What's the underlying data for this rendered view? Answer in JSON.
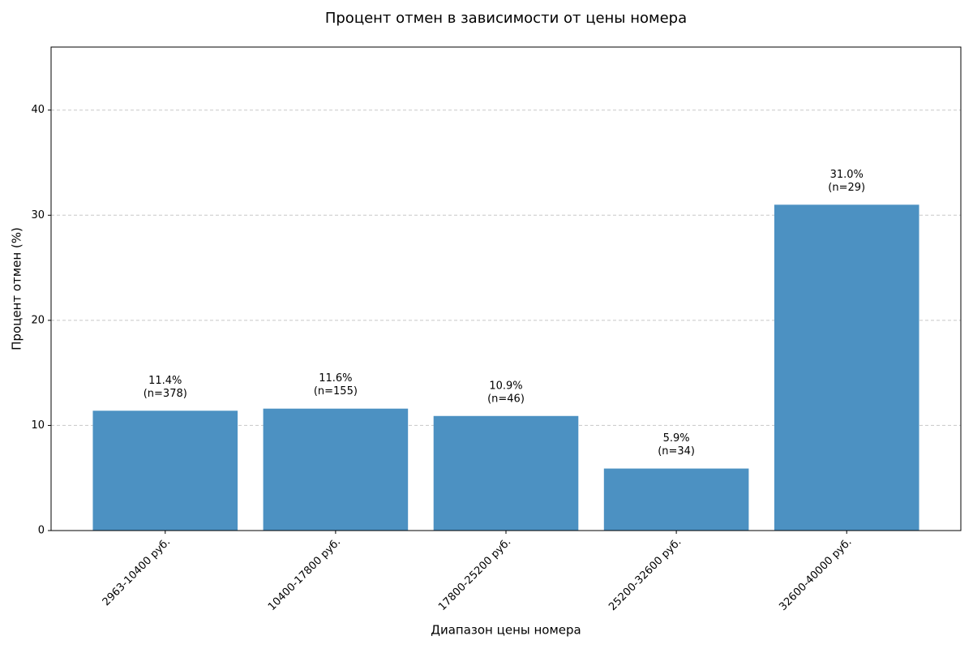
{
  "chart_data": {
    "type": "bar",
    "title": "Процент отмен в зависимости от цены номера",
    "x_label": "Диапазон цены номера",
    "y_label": "Процент отмен (%)",
    "categories": [
      "2963-10400 руб.",
      "10400-17800 руб.",
      "17800-25200 руб.",
      "25200-32600 руб.",
      "32600-40000 руб."
    ],
    "values": [
      11.4,
      11.6,
      10.9,
      5.9,
      31.0
    ],
    "value_labels": [
      "11.4%",
      "11.6%",
      "10.9%",
      "5.9%",
      "31.0%"
    ],
    "count_labels": [
      "(n=378)",
      "(n=155)",
      "(n=46)",
      "(n=34)",
      "(n=29)"
    ],
    "color": "#4c91c2",
    "ylim": [
      0,
      46
    ],
    "yticks": [
      0,
      10,
      20,
      30,
      40
    ],
    "grid": true
  }
}
